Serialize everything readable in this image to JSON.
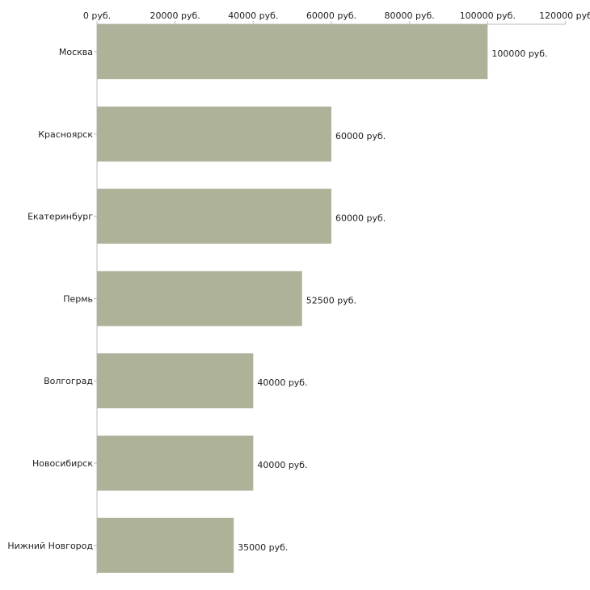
{
  "chart_data": {
    "type": "bar",
    "orientation": "horizontal",
    "title": "",
    "xlabel": "",
    "ylabel": "",
    "unit": "руб.",
    "categories": [
      "Москва",
      "Красноярск",
      "Екатеринбург",
      "Пермь",
      "Волгоград",
      "Новосибирск",
      "Нижний Новгород"
    ],
    "values": [
      100000,
      60000,
      60000,
      52500,
      40000,
      40000,
      35000
    ],
    "value_labels": [
      "100000 руб.",
      "60000 руб.",
      "60000 руб.",
      "52500 руб.",
      "40000 руб.",
      "40000 руб.",
      "35000 руб."
    ],
    "xlim": [
      0,
      120000
    ],
    "ticks": [
      0,
      20000,
      40000,
      60000,
      80000,
      100000,
      120000
    ],
    "tick_labels": [
      "0 руб.",
      "20000 руб.",
      "40000 руб.",
      "60000 руб.",
      "80000 руб.",
      "100000 руб.",
      "120000 руб"
    ],
    "axis_position": "top",
    "grid": false,
    "legend": "none",
    "bar_color": "#adb299",
    "axis_color": "#bbbbbb",
    "text_color": "#222222"
  }
}
